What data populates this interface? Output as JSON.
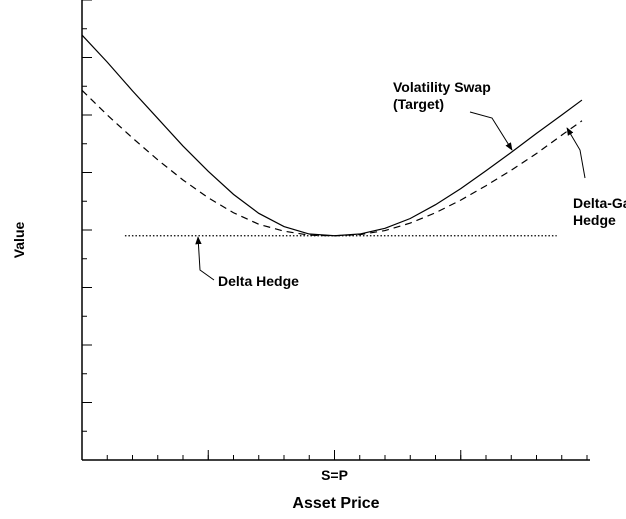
{
  "chart_data": {
    "type": "line",
    "xlabel": "Asset Price",
    "ylabel": "Value",
    "xlim": [
      0,
      20
    ],
    "ylim": [
      0,
      8
    ],
    "xticks": [
      {
        "value": 10,
        "label": "S=P"
      }
    ],
    "xminorticks": [
      0,
      1,
      2,
      3,
      4,
      5,
      6,
      7,
      8,
      9,
      10,
      11,
      12,
      13,
      14,
      15,
      16,
      17,
      18,
      19,
      20
    ],
    "xmajorticks": [
      5,
      10,
      15
    ],
    "yminorticks": [
      0.5,
      1,
      1.5,
      2,
      2.5,
      3,
      3.5,
      4,
      4.5,
      5,
      5.5,
      6,
      6.5,
      7,
      7.5,
      8
    ],
    "ymajorticks": [
      1,
      2,
      3,
      4,
      5,
      6,
      7,
      8
    ],
    "series": [
      {
        "color": "#000000",
        "dash": "solid",
        "x": [
          0,
          1,
          2,
          3,
          4,
          5,
          6,
          7,
          8,
          9,
          10,
          11,
          12,
          13,
          14,
          15,
          16,
          17,
          18,
          19,
          19.8
        ],
        "values": [
          7.39,
          6.92,
          6.42,
          5.94,
          5.46,
          5.02,
          4.62,
          4.29,
          4.06,
          3.93,
          3.9,
          3.93,
          4.03,
          4.2,
          4.44,
          4.72,
          5.03,
          5.35,
          5.68,
          6.0,
          6.26
        ]
      },
      {
        "color": "#000000",
        "dash": "dashed",
        "x": [
          0,
          1,
          2,
          3,
          4,
          5,
          6,
          7,
          8,
          9,
          10,
          11,
          12,
          13,
          14,
          15,
          16,
          17,
          18,
          19,
          19.8
        ],
        "values": [
          6.43,
          6.0,
          5.6,
          5.22,
          4.87,
          4.56,
          4.3,
          4.1,
          3.98,
          3.91,
          3.9,
          3.92,
          3.99,
          4.12,
          4.3,
          4.52,
          4.77,
          5.04,
          5.33,
          5.65,
          5.9
        ]
      },
      {
        "color": "#000000",
        "dash": "dotted",
        "x": [
          1.7,
          18.8
        ],
        "values": [
          3.9,
          3.9
        ]
      }
    ],
    "annotations": [
      {
        "lines": [
          "Volatility Swap",
          "(Target)"
        ]
      },
      {
        "lines": [
          "Delta-Gamma",
          "Hedge"
        ]
      },
      {
        "lines": [
          "Delta Hedge"
        ]
      }
    ]
  }
}
